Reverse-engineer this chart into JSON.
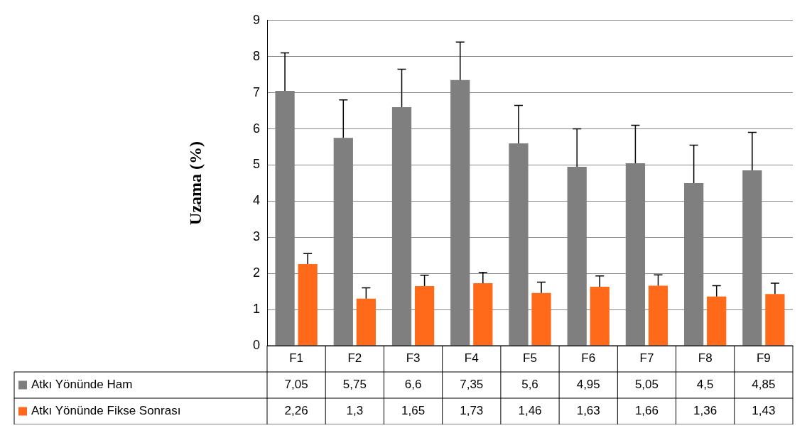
{
  "chart_data": {
    "type": "bar",
    "ylabel": "Uzama (%)",
    "categories": [
      "F1",
      "F2",
      "F3",
      "F4",
      "F5",
      "F6",
      "F7",
      "F8",
      "F9"
    ],
    "series": [
      {
        "name": "Atkı Yönünde Ham",
        "color": "#7f7f7f",
        "values": [
          7.05,
          5.75,
          6.6,
          7.35,
          5.6,
          4.95,
          5.05,
          4.5,
          4.85
        ],
        "value_labels": [
          "7,05",
          "5,75",
          "6,6",
          "7,35",
          "5,6",
          "4,95",
          "5,05",
          "4,5",
          "4,85"
        ],
        "errors": [
          [
            7.05,
            8.1
          ],
          [
            5.75,
            6.8
          ],
          [
            6.6,
            7.65
          ],
          [
            7.35,
            8.4
          ],
          [
            5.6,
            6.65
          ],
          [
            4.95,
            6.0
          ],
          [
            5.05,
            6.1
          ],
          [
            4.5,
            5.55
          ],
          [
            4.85,
            5.9
          ]
        ]
      },
      {
        "name": "Atkı Yönünde Fikse Sonrası",
        "color": "#ff6a1a",
        "values": [
          2.26,
          1.3,
          1.65,
          1.73,
          1.46,
          1.63,
          1.66,
          1.36,
          1.43
        ],
        "value_labels": [
          "2,26",
          "1,3",
          "1,65",
          "1,73",
          "1,46",
          "1,63",
          "1,66",
          "1,36",
          "1,43"
        ],
        "errors": [
          [
            2.26,
            2.55
          ],
          [
            1.3,
            1.6
          ],
          [
            1.65,
            1.95
          ],
          [
            1.73,
            2.03
          ],
          [
            1.46,
            1.76
          ],
          [
            1.63,
            1.93
          ],
          [
            1.66,
            1.96
          ],
          [
            1.36,
            1.66
          ],
          [
            1.43,
            1.73
          ]
        ]
      }
    ],
    "ylim": [
      0,
      9
    ],
    "yticks": [
      0,
      1,
      2,
      3,
      4,
      5,
      6,
      7,
      8,
      9
    ],
    "grid": "y",
    "legend": "bottom left"
  }
}
